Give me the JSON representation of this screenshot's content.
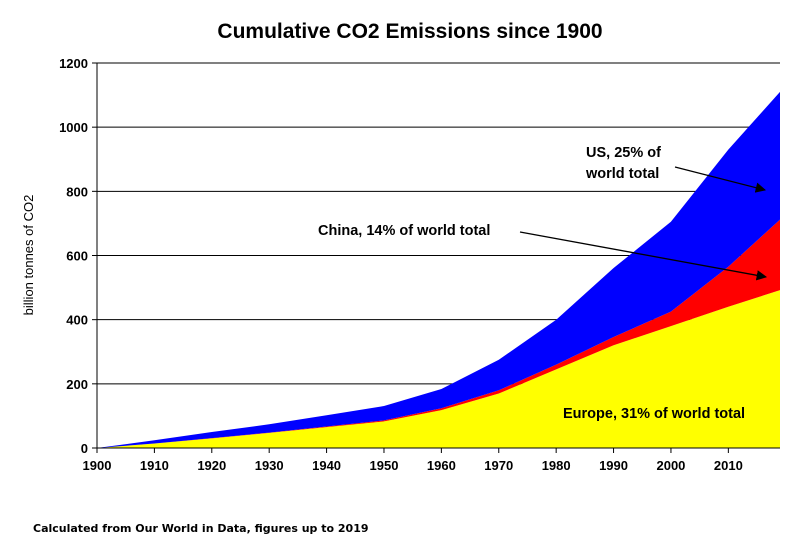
{
  "chart_data": {
    "type": "area",
    "stacked": true,
    "title": "Cumulative CO2 Emissions since 1900",
    "ylabel": "billion tonnes of CO2",
    "xlabel": "",
    "xlim": [
      1900,
      2019
    ],
    "ylim": [
      0,
      1200
    ],
    "x_ticks": [
      1900,
      1910,
      1920,
      1930,
      1940,
      1950,
      1960,
      1970,
      1980,
      1990,
      2000,
      2010
    ],
    "y_ticks": [
      0,
      200,
      400,
      600,
      800,
      1000,
      1200
    ],
    "grid": "horizontal",
    "x": [
      1900,
      1910,
      1920,
      1930,
      1940,
      1950,
      1960,
      1970,
      1980,
      1990,
      2000,
      2010,
      2019
    ],
    "series": [
      {
        "key": "europe",
        "color": "#ffff00",
        "values": [
          0,
          14,
          30,
          47,
          65,
          83,
          118,
          170,
          245,
          320,
          380,
          440,
          492
        ]
      },
      {
        "key": "china",
        "color": "#ff0000",
        "values": [
          0,
          0,
          1,
          1,
          2,
          3,
          6,
          10,
          15,
          26,
          45,
          125,
          220
        ]
      },
      {
        "key": "us",
        "color": "#0000ff",
        "values": [
          0,
          10,
          19,
          26,
          35,
          45,
          60,
          95,
          140,
          215,
          280,
          365,
          398
        ]
      }
    ],
    "annotations": [
      {
        "key": "us",
        "lines": [
          "US, 25% of",
          "world total"
        ]
      },
      {
        "key": "china",
        "lines": [
          "China, 14% of world total"
        ]
      },
      {
        "key": "europe",
        "lines": [
          "Europe, 31% of world total"
        ]
      }
    ],
    "source_note": "Calculated from Our World in Data, figures up to 2019"
  }
}
